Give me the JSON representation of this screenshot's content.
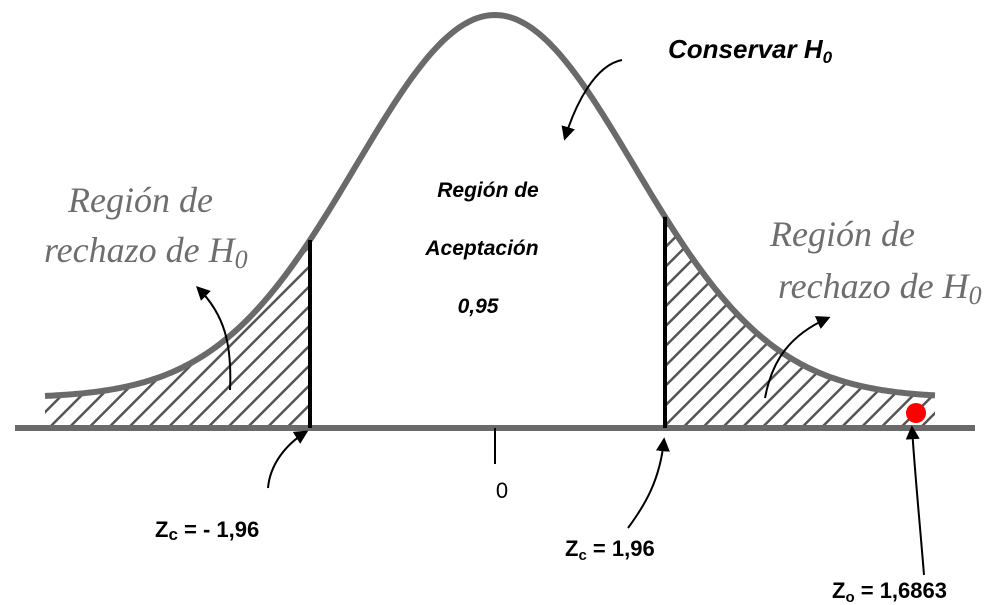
{
  "title": {
    "text": "Conservar H",
    "sub": "0"
  },
  "left_region": {
    "line1": "Región de",
    "line2": {
      "text": "rechazo de H",
      "sub": "0"
    }
  },
  "acceptance": {
    "line1": "Región de",
    "line2": "Aceptación",
    "line3": "0,95"
  },
  "right_region": {
    "line1": "Región de",
    "line2": {
      "text": "rechazo de H",
      "sub": "0"
    }
  },
  "center_label": "0",
  "z_left": {
    "text": "Z",
    "sub": "c",
    "rest": " = - 1,96"
  },
  "z_right": {
    "text": "Z",
    "sub": "c",
    "rest": " = 1,96"
  },
  "z_obs": {
    "text": "Z",
    "sub": "o",
    "rest": " = 1,6863"
  }
}
